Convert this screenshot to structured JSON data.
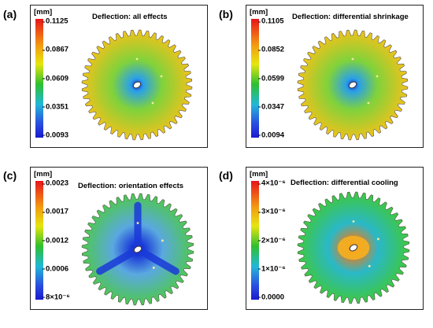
{
  "panels": [
    {
      "tag": "(a)",
      "title": "Deflection: all effects",
      "unit": "[mm]",
      "ticks": [
        "0.1125",
        "0.0867",
        "0.0609",
        "0.0351",
        "0.0093"
      ],
      "colors": {
        "rim": "#f0c21a",
        "mid": "#7fd23c",
        "center": "#2aa0e8",
        "hole": "#1a2fd0"
      }
    },
    {
      "tag": "(b)",
      "title": "Deflection: differential shrinkage",
      "unit": "[mm]",
      "ticks": [
        "0.1105",
        "0.0852",
        "0.0599",
        "0.0347",
        "0.0094"
      ],
      "colors": {
        "rim": "#f0c21a",
        "mid": "#7fd23c",
        "center": "#2aa0e8",
        "hole": "#1a2fd0"
      }
    },
    {
      "tag": "(c)",
      "title": "Deflection: orientation effects",
      "unit": "[mm]",
      "ticks": [
        "0.0023",
        "0.0017",
        "0.0012",
        "0.0006",
        "8×10⁻⁶"
      ],
      "colors": {
        "rim": "#4ec84e",
        "mid": "#5aa8e0",
        "center": "#1a3ad8",
        "hole": "#1a1ad0"
      }
    },
    {
      "tag": "(d)",
      "title": "Deflection: differential cooling",
      "unit": "[mm]",
      "ticks": [
        "4×10⁻⁶",
        "3×10⁻⁶",
        "2×10⁻⁶",
        "1×10⁻⁶",
        "0.0000"
      ],
      "colors": {
        "rim": "#3ec83e",
        "mid": "#2ab8c8",
        "center": "#f07a18",
        "hole": "#e01818"
      }
    }
  ]
}
